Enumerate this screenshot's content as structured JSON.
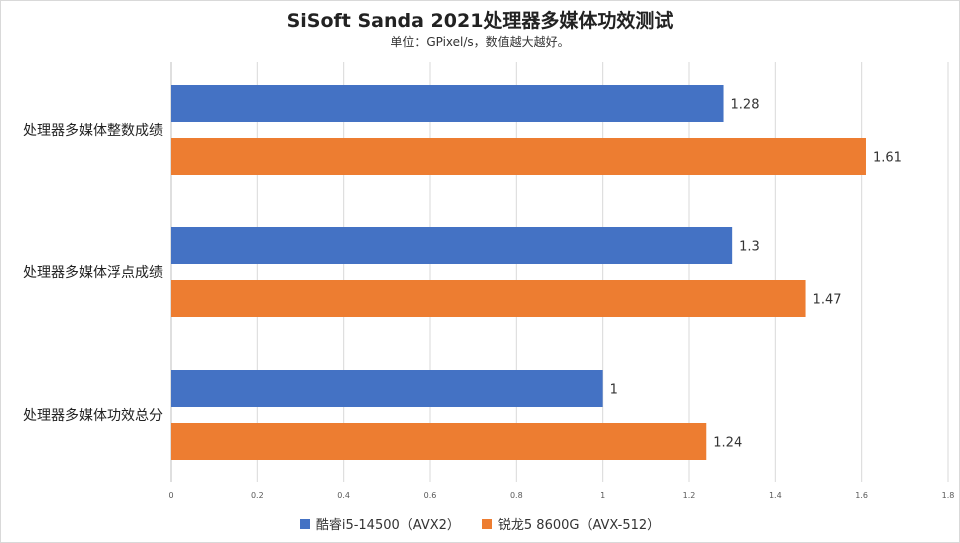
{
  "chart_data": {
    "type": "bar",
    "orientation": "horizontal",
    "title": "SiSoft Sanda 2021处理器多媒体功效测试",
    "subtitle": "单位：GPixel/s，数值越大越好。",
    "categories": [
      "处理器多媒体整数成绩",
      "处理器多媒体浮点成绩",
      "处理器多媒体功效总分"
    ],
    "series": [
      {
        "name": "酷睿i5-14500（AVX2）",
        "color": "#4472c4",
        "values": [
          1.28,
          1.3,
          1
        ]
      },
      {
        "name": "锐龙5 8600G（AVX-512）",
        "color": "#ed7d31",
        "values": [
          1.61,
          1.47,
          1.24
        ]
      }
    ],
    "value_labels": [
      [
        "1.28",
        "1.3",
        "1"
      ],
      [
        "1.61",
        "1.47",
        "1.24"
      ]
    ],
    "xlim": [
      0,
      1.8
    ],
    "xticks": [
      "0",
      "0.2",
      "0.4",
      "0.6",
      "0.8",
      "1",
      "1.2",
      "1.4",
      "1.6",
      "1.8"
    ],
    "grid": true,
    "legend_position": "bottom"
  }
}
